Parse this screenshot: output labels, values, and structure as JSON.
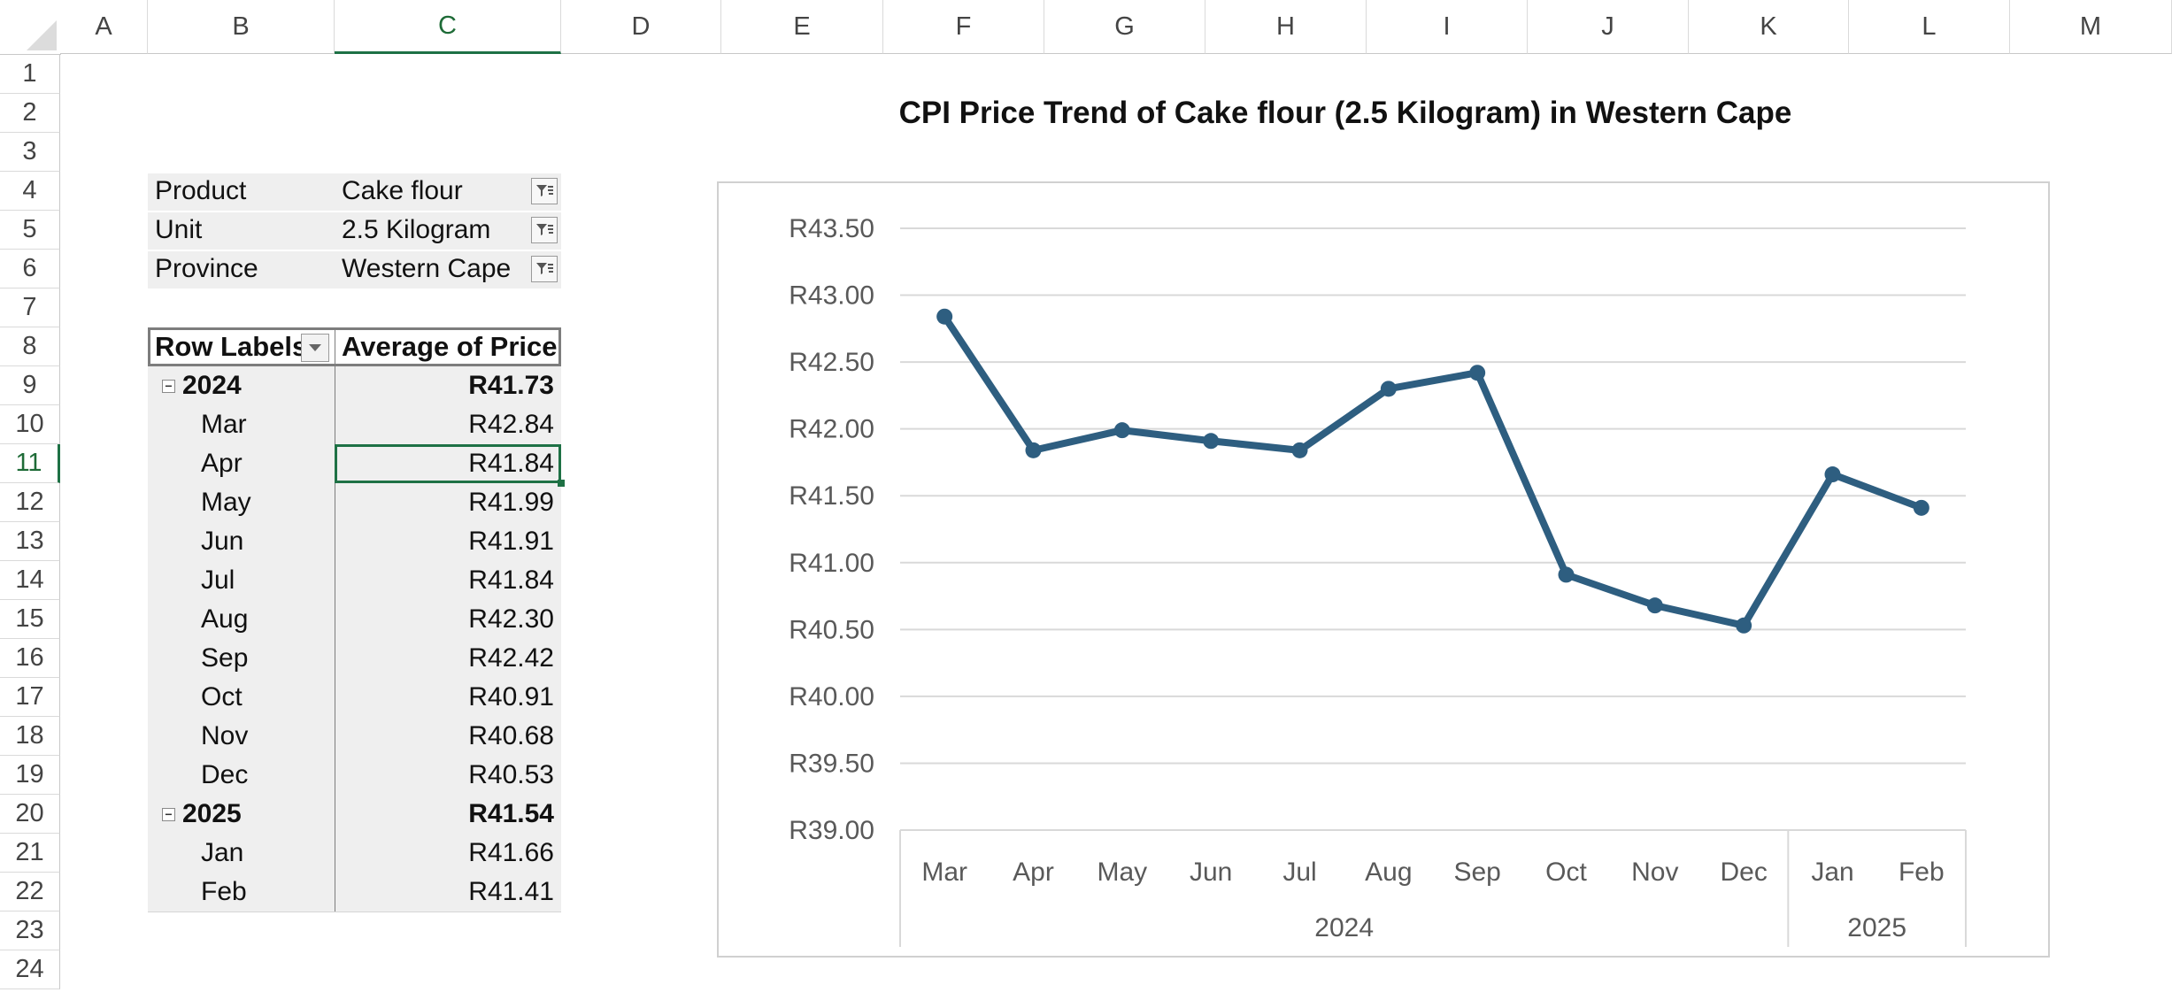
{
  "sheet": {
    "columns": [
      "A",
      "B",
      "C",
      "D",
      "E",
      "F",
      "G",
      "H",
      "I",
      "J",
      "K",
      "L",
      "M"
    ],
    "rows": [
      "1",
      "2",
      "3",
      "4",
      "5",
      "6",
      "7",
      "8",
      "9",
      "10",
      "11",
      "12",
      "13",
      "14",
      "15",
      "16",
      "17",
      "18",
      "19",
      "20",
      "21",
      "22",
      "23",
      "24"
    ],
    "selected_column": "C",
    "selected_row": "11"
  },
  "pivot": {
    "filters": [
      {
        "label": "Product",
        "value": "Cake flour",
        "icon": "filter-icon"
      },
      {
        "label": "Unit",
        "value": "2.5 Kilogram",
        "icon": "filter-icon"
      },
      {
        "label": "Province",
        "value": "Western Cape",
        "icon": "filter-icon"
      }
    ],
    "header": {
      "row_labels": "Row Labels",
      "value_col": "Average of Price"
    },
    "rows": [
      {
        "label": "2024",
        "value": "R41.73",
        "type": "year"
      },
      {
        "label": "Mar",
        "value": "R42.84",
        "type": "month"
      },
      {
        "label": "Apr",
        "value": "R41.84",
        "type": "month"
      },
      {
        "label": "May",
        "value": "R41.99",
        "type": "month"
      },
      {
        "label": "Jun",
        "value": "R41.91",
        "type": "month"
      },
      {
        "label": "Jul",
        "value": "R41.84",
        "type": "month"
      },
      {
        "label": "Aug",
        "value": "R42.30",
        "type": "month"
      },
      {
        "label": "Sep",
        "value": "R42.42",
        "type": "month"
      },
      {
        "label": "Oct",
        "value": "R40.91",
        "type": "month"
      },
      {
        "label": "Nov",
        "value": "R40.68",
        "type": "month"
      },
      {
        "label": "Dec",
        "value": "R40.53",
        "type": "month"
      },
      {
        "label": "2025",
        "value": "R41.54",
        "type": "year"
      },
      {
        "label": "Jan",
        "value": "R41.66",
        "type": "month"
      },
      {
        "label": "Feb",
        "value": "R41.41",
        "type": "month"
      }
    ]
  },
  "chart_data": {
    "type": "line",
    "title": "CPI Price Trend of Cake flour (2.5 Kilogram) in Western Cape",
    "categories": [
      "Mar",
      "Apr",
      "May",
      "Jun",
      "Jul",
      "Aug",
      "Sep",
      "Oct",
      "Nov",
      "Dec",
      "Jan",
      "Feb"
    ],
    "groups": [
      {
        "label": "2024",
        "count": 10
      },
      {
        "label": "2025",
        "count": 2
      }
    ],
    "series": [
      {
        "values": [
          42.84,
          41.84,
          41.99,
          41.91,
          41.84,
          42.3,
          42.42,
          40.91,
          40.68,
          40.53,
          41.66,
          41.41
        ],
        "color": "#2e5e80"
      }
    ],
    "ylim": [
      39.0,
      43.5
    ],
    "yticks": [
      "R39.00",
      "R39.50",
      "R40.00",
      "R40.50",
      "R41.00",
      "R41.50",
      "R42.00",
      "R42.50",
      "R43.00",
      "R43.50"
    ],
    "grid": true,
    "legend": "none"
  }
}
